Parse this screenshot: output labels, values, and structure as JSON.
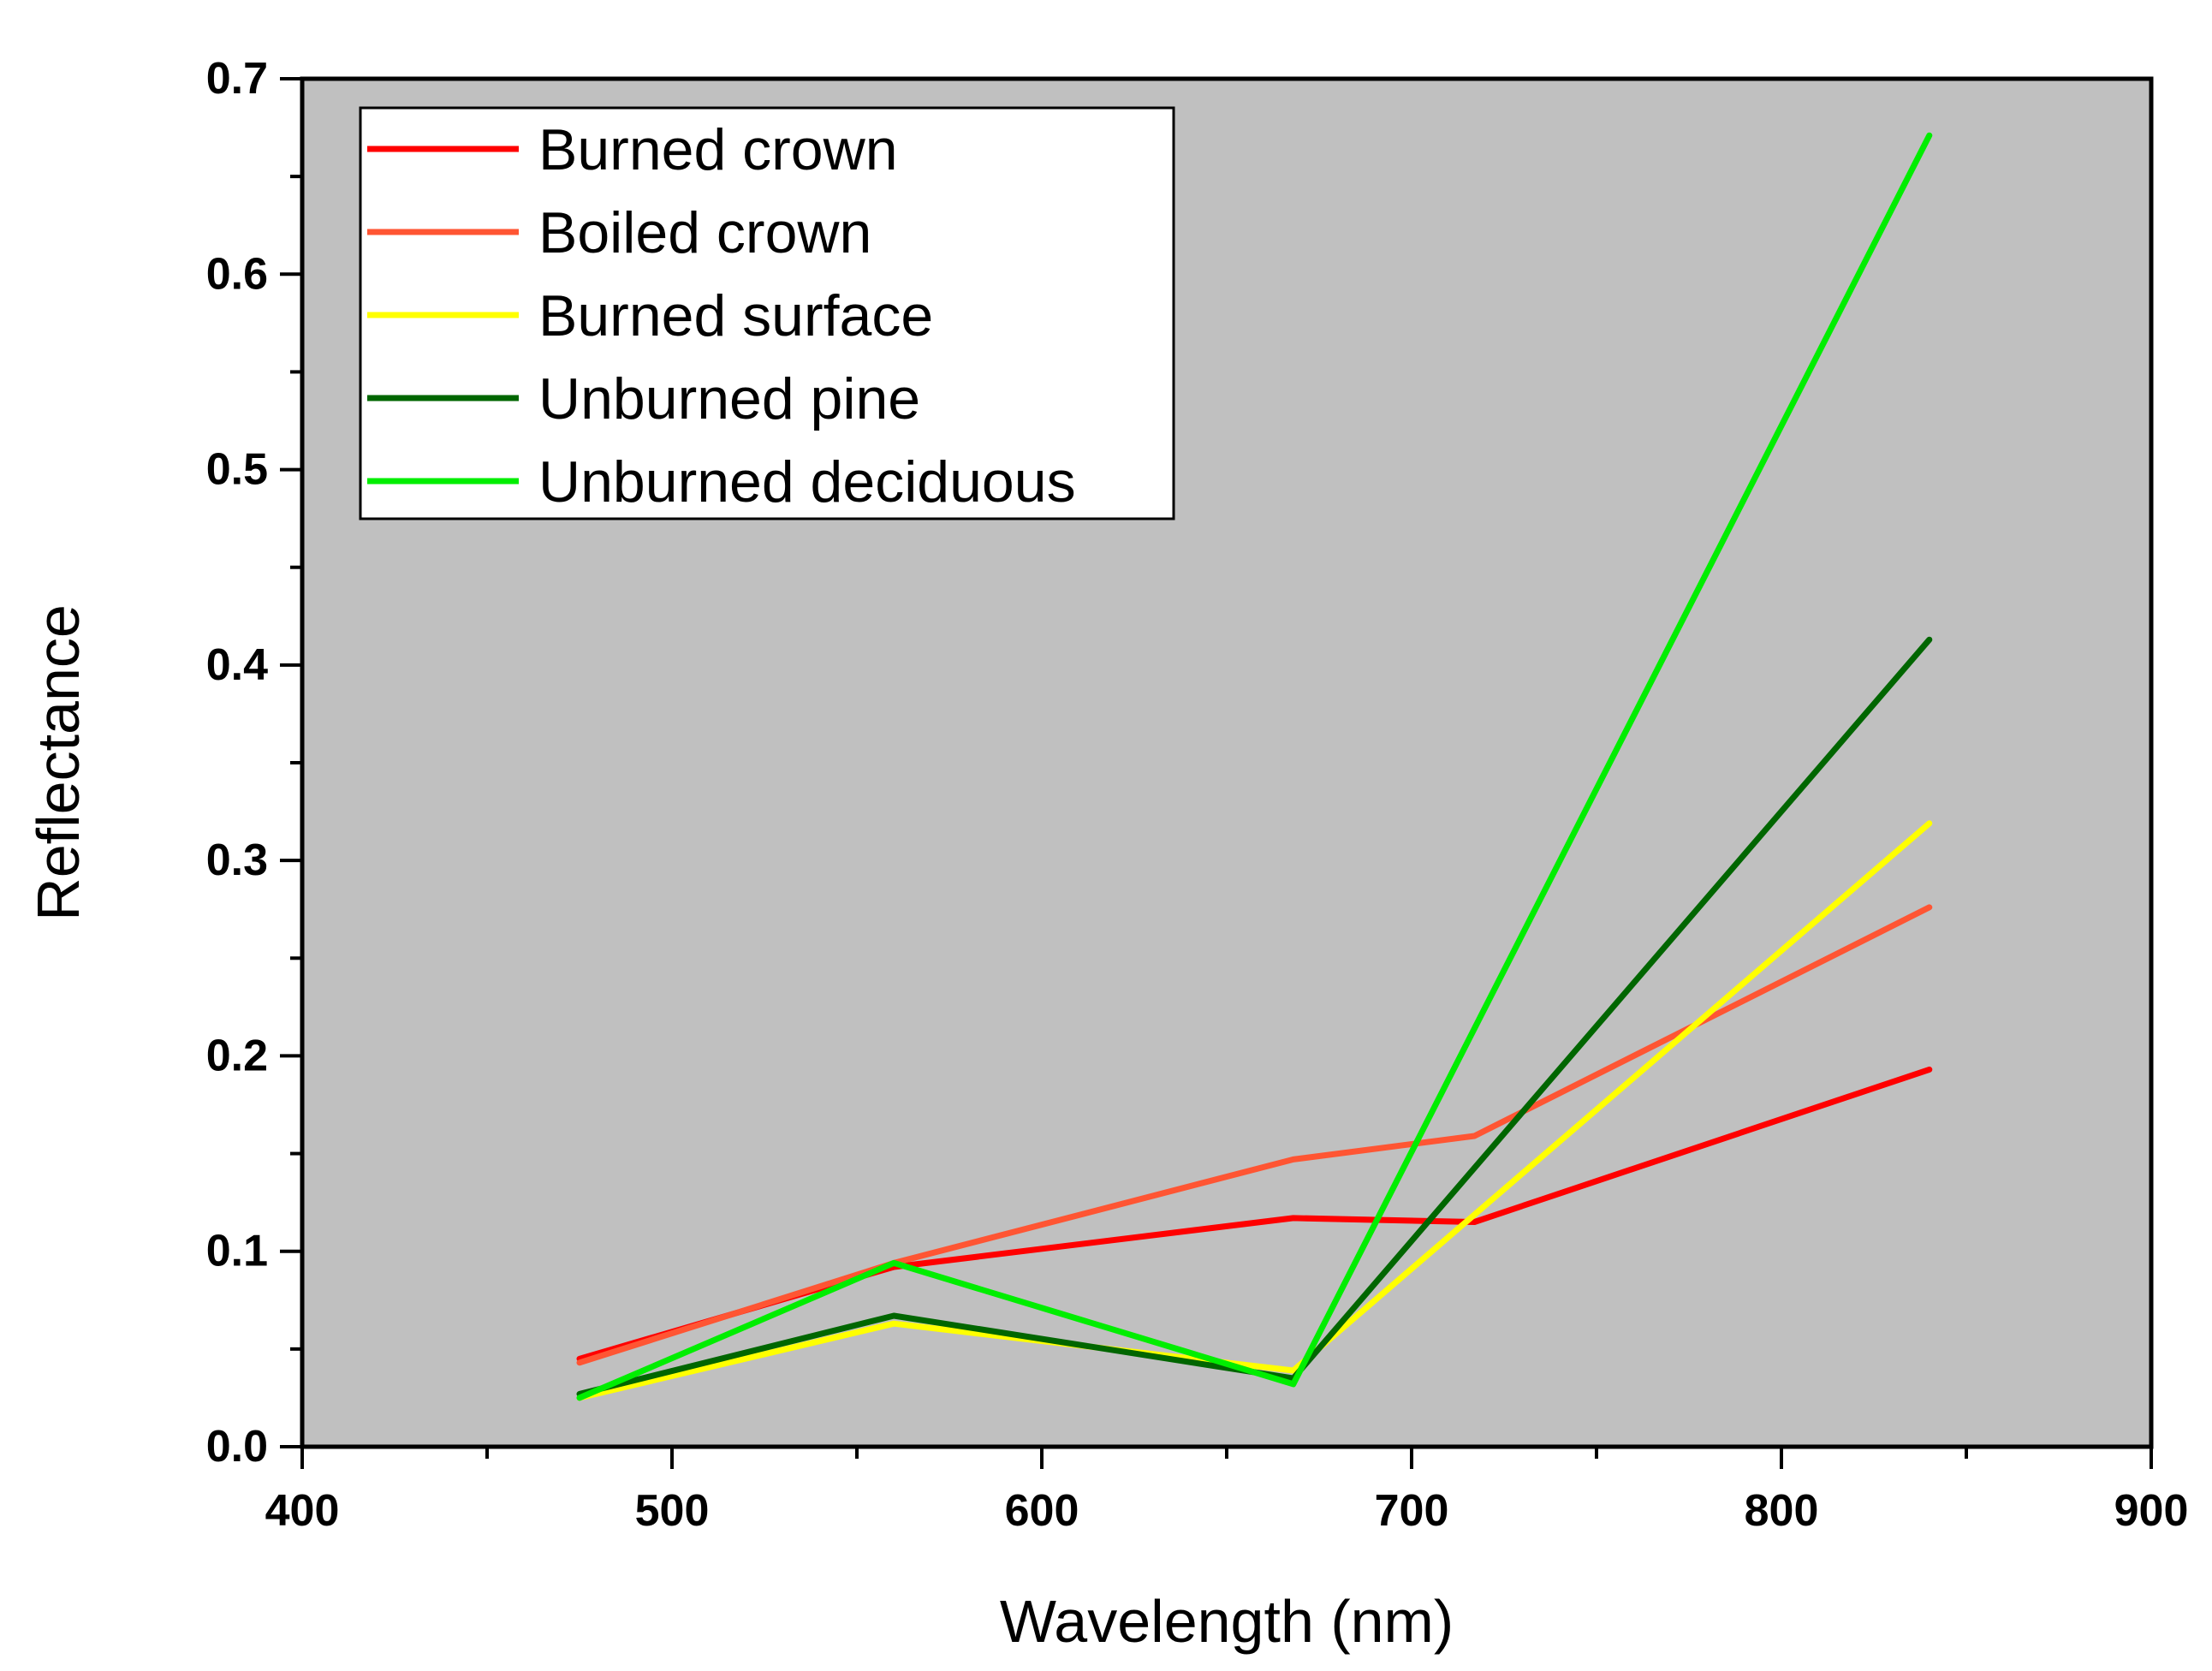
{
  "chart_data": {
    "type": "line",
    "title": "",
    "xlabel": "Wavelength (nm)",
    "ylabel": "Reflectance",
    "xlim": [
      400,
      900
    ],
    "ylim": [
      0.0,
      0.7
    ],
    "x_ticks": [
      400,
      500,
      600,
      700,
      800,
      900
    ],
    "x_tick_labels": [
      "400",
      "500",
      "600",
      "700",
      "800",
      "900"
    ],
    "y_ticks": [
      0.0,
      0.1,
      0.2,
      0.3,
      0.4,
      0.5,
      0.6,
      0.7
    ],
    "y_tick_labels": [
      "0.0",
      "0.1",
      "0.2",
      "0.3",
      "0.4",
      "0.5",
      "0.6",
      "0.7"
    ],
    "grid": false,
    "plot_background": "#c0c0c0",
    "legend_position": "top-left",
    "series": [
      {
        "name": "Burned crown",
        "color": "#ff0000",
        "x": [
          475,
          560,
          668,
          717,
          840
        ],
        "y": [
          0.045,
          0.092,
          0.117,
          0.115,
          0.193
        ]
      },
      {
        "name": "Boiled crown",
        "color": "#ff5533",
        "x": [
          475,
          560,
          668,
          717,
          840
        ],
        "y": [
          0.043,
          0.094,
          0.147,
          0.159,
          0.276
        ]
      },
      {
        "name": "Burned surface",
        "color": "#ffff00",
        "x": [
          475,
          560,
          668,
          840
        ],
        "y": [
          0.025,
          0.063,
          0.039,
          0.319
        ]
      },
      {
        "name": "Unburned pine",
        "color": "#006600",
        "x": [
          475,
          560,
          668,
          840
        ],
        "y": [
          0.027,
          0.067,
          0.035,
          0.413
        ]
      },
      {
        "name": "Unburned deciduous",
        "color": "#00ee00",
        "x": [
          475,
          560,
          668,
          840
        ],
        "y": [
          0.025,
          0.094,
          0.032,
          0.671
        ]
      }
    ]
  }
}
